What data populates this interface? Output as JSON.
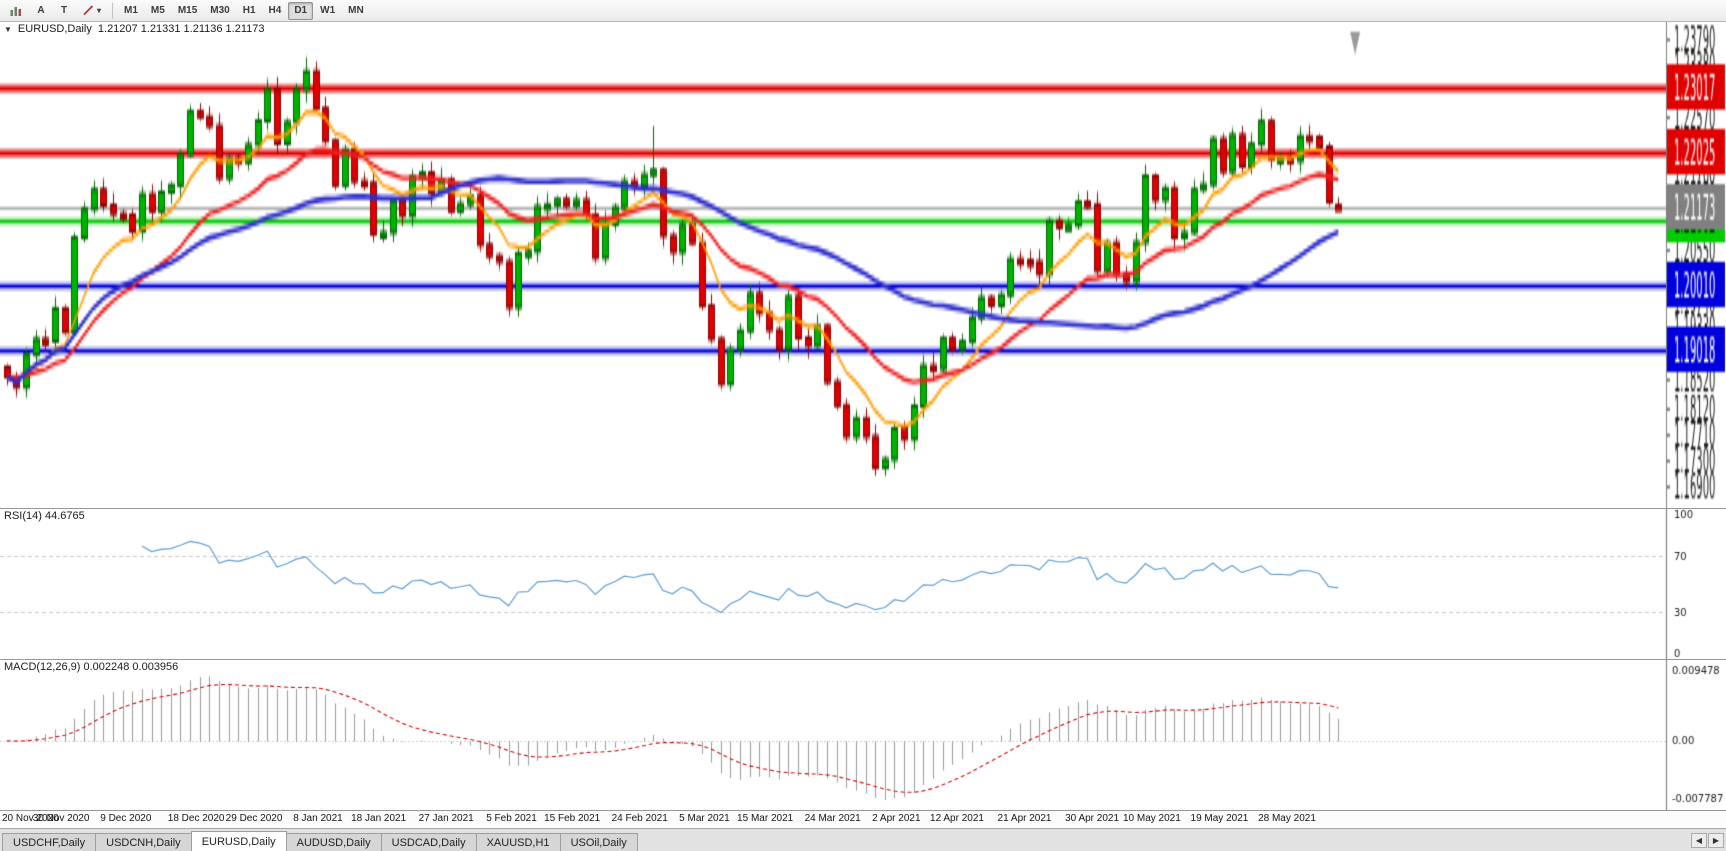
{
  "toolbar": {
    "buttons": [
      {
        "label": "A"
      },
      {
        "label": "T"
      }
    ],
    "caret_glyph": "▾",
    "timeframes": [
      "M1",
      "M5",
      "M15",
      "M30",
      "H1",
      "H4",
      "D1",
      "W1",
      "MN"
    ],
    "active_timeframe": "D1"
  },
  "chart": {
    "collapse_glyph": "▼",
    "symbol_label": "EURUSD,Daily",
    "ohlc_label": "1.21207 1.21331 1.21136 1.21173"
  },
  "chart_data": {
    "type": "candlestick",
    "symbol": "EURUSD",
    "timeframe": "Daily",
    "last_ohlc": {
      "open": 1.21207,
      "high": 1.21331,
      "low": 1.21136,
      "close": 1.21173
    },
    "price_min": 1.167,
    "price_max": 1.2388,
    "first_open": 1.1872,
    "wick_base": 0.0016,
    "plot": {
      "candles_ratio": 0.805
    },
    "closes": [
      1.1857,
      1.1841,
      1.1891,
      1.1915,
      1.1912,
      1.1962,
      1.1926,
      1.2071,
      1.2115,
      1.2145,
      1.2121,
      1.2108,
      1.2106,
      1.2081,
      1.2138,
      1.2112,
      1.2141,
      1.2152,
      1.2199,
      1.2265,
      1.2257,
      1.2243,
      1.2163,
      1.2193,
      1.2187,
      1.2214,
      1.2251,
      1.2299,
      1.2216,
      1.2249,
      1.2299,
      1.2327,
      1.227,
      1.222,
      1.2152,
      1.2207,
      1.2158,
      1.2155,
      1.2077,
      1.2079,
      1.2128,
      1.2105,
      1.2165,
      1.2171,
      1.214,
      1.216,
      1.2112,
      1.2123,
      1.2135,
      1.206,
      1.2043,
      1.2034,
      1.1964,
      1.2047,
      1.205,
      1.2119,
      1.2122,
      1.213,
      1.212,
      1.2129,
      1.2106,
      1.204,
      1.2092,
      1.2118,
      1.2158,
      1.215,
      1.2168,
      1.2175,
      1.2074,
      1.2049,
      1.209,
      1.2063,
      1.1966,
      1.1915,
      1.1846,
      1.1899,
      1.1928,
      1.1985,
      1.1955,
      1.1929,
      1.1899,
      1.198,
      1.1917,
      1.1905,
      1.1935,
      1.1849,
      1.1813,
      1.1765,
      1.1793,
      1.1765,
      1.1717,
      1.173,
      1.1777,
      1.1761,
      1.1812,
      1.1874,
      1.1869,
      1.1916,
      1.1899,
      1.1911,
      1.1948,
      1.1979,
      1.1967,
      1.1983,
      1.2038,
      1.2036,
      1.2034,
      1.2015,
      1.2097,
      1.2087,
      1.209,
      1.2126,
      1.2122,
      1.202,
      1.2063,
      1.2015,
      1.2004,
      1.2064,
      1.2166,
      1.2129,
      1.2147,
      1.2071,
      1.2079,
      1.2145,
      1.2153,
      1.2223,
      1.2173,
      1.2229,
      1.2181,
      1.2215,
      1.225,
      1.2192,
      1.2194,
      1.2189,
      1.2227,
      1.2226,
      1.2211,
      1.2126,
      1.21173
    ],
    "overrides": {
      "31": {
        "h": 1.2349
      },
      "67": {
        "h": 1.2243
      },
      "91": {
        "l": 1.1704
      },
      "138": {
        "o": 1.21207,
        "h": 1.21331,
        "l": 1.21136,
        "c": 1.21173
      }
    },
    "y_ticks": [
      1.2379,
      1.2338,
      1.2297,
      1.2257,
      1.2217,
      1.2176,
      1.2137,
      1.2096,
      1.2055,
      1.2014,
      1.1974,
      1.1933,
      1.1893,
      1.1852,
      1.1812,
      1.1771,
      1.173,
      1.169
    ],
    "x_labels": [
      {
        "label": "20 Nov 2020",
        "i": 0
      },
      {
        "label": "30 Nov 2020",
        "i": 6
      },
      {
        "label": "9 Dec 2020",
        "i": 13
      },
      {
        "label": "18 Dec 2020",
        "i": 20
      },
      {
        "label": "29 Dec 2020",
        "i": 26
      },
      {
        "label": "8 Jan 2021",
        "i": 33
      },
      {
        "label": "18 Jan 2021",
        "i": 39
      },
      {
        "label": "27 Jan 2021",
        "i": 46
      },
      {
        "label": "5 Feb 2021",
        "i": 53
      },
      {
        "label": "15 Feb 2021",
        "i": 59
      },
      {
        "label": "24 Feb 2021",
        "i": 66
      },
      {
        "label": "5 Mar 2021",
        "i": 73
      },
      {
        "label": "15 Mar 2021",
        "i": 79
      },
      {
        "label": "24 Mar 2021",
        "i": 86
      },
      {
        "label": "2 Apr 2021",
        "i": 93
      },
      {
        "label": "12 Apr 2021",
        "i": 99
      },
      {
        "label": "21 Apr 2021",
        "i": 106
      },
      {
        "label": "30 Apr 2021",
        "i": 113
      },
      {
        "label": "10 May 2021",
        "i": 119
      },
      {
        "label": "19 May 2021",
        "i": 126
      },
      {
        "label": "28 May 2021",
        "i": 133
      }
    ],
    "h_lines": [
      {
        "value": 1.23017,
        "label": "1.23017",
        "color": "#e00000",
        "text_color": "#ffffff",
        "width": 2
      },
      {
        "value": 1.22025,
        "label": "1.22025",
        "color": "#e00000",
        "text_color": "#ffffff",
        "width": 2
      },
      {
        "value": 1.21002,
        "label": "1.21002",
        "color": "#00cc00",
        "text_color": "#003800",
        "width": 1.4
      },
      {
        "value": 1.2001,
        "label": "1.20010",
        "color": "#0000dd",
        "text_color": "#ffffff",
        "width": 1.6
      },
      {
        "value": 1.19018,
        "label": "1.19018",
        "color": "#0000dd",
        "text_color": "#ffffff",
        "width": 1.6
      }
    ],
    "current_price": {
      "value": 1.21173,
      "label": "1.21173",
      "badge_color": "#808080"
    },
    "moving_averages": [
      {
        "method": "ema",
        "period": 8,
        "color": "#ff9c00",
        "width": 1.2
      },
      {
        "method": "ema",
        "period": 20,
        "color": "#ee2020",
        "width": 1.4
      },
      {
        "method": "sma",
        "period": 45,
        "color": "#2d2dcc",
        "width": 1.6
      }
    ],
    "rsi": {
      "label": "RSI(14) 44.6765",
      "period": 14,
      "current": 44.6765,
      "levels": [
        70,
        30
      ],
      "axis": [
        100,
        70,
        30,
        0
      ]
    },
    "macd": {
      "label": "MACD(12,26,9) 0.002248 0.003956",
      "fast": 12,
      "slow": 26,
      "signal": 9,
      "current_macd": 0.002248,
      "current_signal": 0.003956,
      "scale_max": 0.0104,
      "scale_min": -0.0088,
      "axis": [
        {
          "label": "0.009478",
          "value": 0.009478
        },
        {
          "label": "0.00",
          "value": 0
        },
        {
          "label": "-0.007787",
          "value": -0.007787
        }
      ]
    },
    "colors": {
      "up": "#00b300",
      "up_border": "#006400",
      "down": "#e10000",
      "down_border": "#8b0000",
      "rsi": "#5b9bd5",
      "macd_hist": "#9a9a9a",
      "macd_signal": "#d40000",
      "axis_text": "#1a1a1a"
    }
  },
  "tabs": {
    "items": [
      "USDCHF,Daily",
      "USDCNH,Daily",
      "EURUSD,Daily",
      "AUDUSD,Daily",
      "USDCAD,Daily",
      "XAUUSD,H1",
      "USOil,Daily"
    ],
    "active": "EURUSD,Daily",
    "scroll_left_glyph": "◀",
    "scroll_right_glyph": "▶"
  }
}
